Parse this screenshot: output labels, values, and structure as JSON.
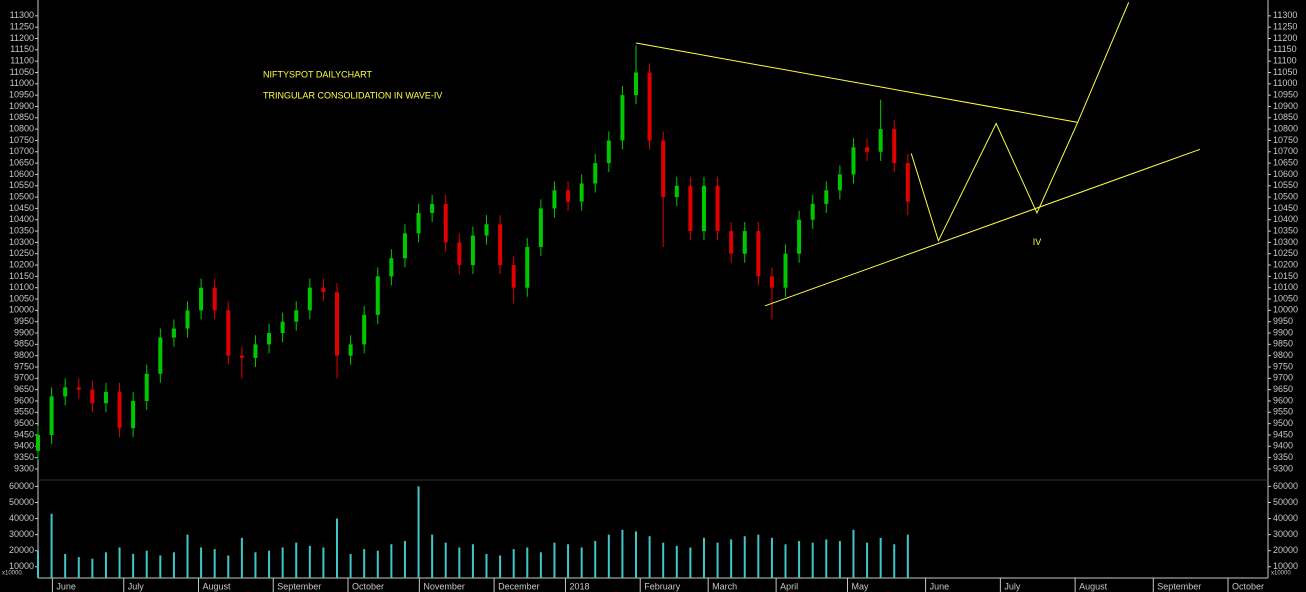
{
  "chart_data": {
    "type": "candlestick",
    "title": "NIFTYSPOT DAILYCHART",
    "subtitle": "TRINGULAR CONSOLIDATION IN WAVE-IV",
    "volume_unit_label": "x10000",
    "up_color": "#00c800",
    "down_color": "#e00000",
    "volume_color": "#40c8c8",
    "line_color": "#ffff40",
    "xlim": [
      0,
      362
    ],
    "ylim": [
      9260,
      11370
    ],
    "vlim": [
      3000,
      64000
    ],
    "xticks": [
      {
        "value": 6,
        "label": "June"
      },
      {
        "value": 27,
        "label": "July"
      },
      {
        "value": 49,
        "label": "August"
      },
      {
        "value": 71,
        "label": "September"
      },
      {
        "value": 93,
        "label": "October"
      },
      {
        "value": 114,
        "label": "November"
      },
      {
        "value": 136,
        "label": "December"
      },
      {
        "value": 157,
        "label": "2018"
      },
      {
        "value": 179,
        "label": "February"
      },
      {
        "value": 199,
        "label": "March"
      },
      {
        "value": 219,
        "label": "April"
      },
      {
        "value": 240,
        "label": "May"
      },
      {
        "value": 263,
        "label": "June"
      },
      {
        "value": 285,
        "label": "July"
      },
      {
        "value": 307,
        "label": "August"
      },
      {
        "value": 330,
        "label": "September"
      },
      {
        "value": 352,
        "label": "October"
      }
    ],
    "yticks": [
      9300,
      9350,
      9400,
      9450,
      9500,
      9550,
      9600,
      9650,
      9700,
      9750,
      9800,
      9850,
      9900,
      9950,
      10000,
      10050,
      10100,
      10150,
      10200,
      10250,
      10300,
      10350,
      10400,
      10450,
      10500,
      10550,
      10600,
      10650,
      10700,
      10750,
      10800,
      10850,
      10900,
      10950,
      11000,
      11050,
      11100,
      11150,
      11200,
      11250,
      11300
    ],
    "vticks": [
      10000,
      20000,
      30000,
      40000,
      50000,
      60000
    ],
    "x": [
      0,
      4,
      8,
      12,
      16,
      20,
      24,
      28,
      32,
      36,
      40,
      44,
      48,
      52,
      56,
      60,
      64,
      68,
      72,
      76,
      80,
      84,
      88,
      92,
      96,
      100,
      104,
      108,
      112,
      116,
      120,
      124,
      128,
      132,
      136,
      140,
      144,
      148,
      152,
      156,
      160,
      164,
      168,
      172,
      176,
      180,
      184,
      188,
      192,
      196,
      200,
      204,
      208,
      212,
      216,
      220,
      224,
      228,
      232,
      236,
      240,
      244,
      248,
      252,
      256
    ],
    "open": [
      9380,
      9450,
      9620,
      9660,
      9650,
      9590,
      9640,
      9480,
      9600,
      9720,
      9880,
      9920,
      10000,
      10100,
      10000,
      9800,
      9790,
      9850,
      9900,
      9950,
      10000,
      10100,
      10080,
      9800,
      9850,
      9980,
      10150,
      10230,
      10340,
      10430,
      10470,
      10300,
      10200,
      10330,
      10380,
      10200,
      10100,
      10280,
      10450,
      10530,
      10480,
      10560,
      10650,
      10750,
      10950,
      11050,
      10750,
      10500,
      10550,
      10350,
      10550,
      10350,
      10250,
      10350,
      10150,
      10100,
      10250,
      10400,
      10470,
      10530,
      10600,
      10720,
      10700,
      10800,
      10650
    ],
    "high": [
      9490,
      9660,
      9700,
      9700,
      9690,
      9680,
      9680,
      9640,
      9760,
      9920,
      9960,
      10040,
      10140,
      10140,
      10040,
      9840,
      9890,
      9940,
      9990,
      10040,
      10140,
      10140,
      10120,
      9890,
      10020,
      10190,
      10270,
      10380,
      10470,
      10510,
      10510,
      10340,
      10370,
      10420,
      10420,
      10240,
      10320,
      10490,
      10570,
      10570,
      10600,
      10690,
      10790,
      10990,
      11170,
      11090,
      10790,
      10590,
      10590,
      10590,
      10590,
      10390,
      10390,
      10390,
      10190,
      10290,
      10440,
      10510,
      10570,
      10640,
      10760,
      10760,
      10930,
      10840,
      10690
    ],
    "low": [
      9340,
      9410,
      9580,
      9610,
      9550,
      9550,
      9440,
      9440,
      9560,
      9680,
      9840,
      9880,
      9960,
      9960,
      9760,
      9700,
      9750,
      9810,
      9860,
      9910,
      9960,
      10040,
      9700,
      9760,
      9810,
      9940,
      10110,
      10190,
      10300,
      10390,
      10260,
      10160,
      10160,
      10290,
      10160,
      10030,
      10060,
      10240,
      10410,
      10440,
      10440,
      10520,
      10610,
      10710,
      10910,
      10710,
      10280,
      10460,
      10310,
      10310,
      10310,
      10210,
      10210,
      10110,
      9960,
      10060,
      10210,
      10360,
      10430,
      10490,
      10560,
      10660,
      10660,
      10610,
      10420
    ],
    "close": [
      9450,
      9620,
      9660,
      9650,
      9590,
      9640,
      9480,
      9600,
      9720,
      9880,
      9920,
      10000,
      10100,
      10000,
      9800,
      9790,
      9850,
      9900,
      9950,
      10000,
      10100,
      10080,
      9800,
      9850,
      9980,
      10150,
      10230,
      10340,
      10430,
      10470,
      10300,
      10200,
      10330,
      10380,
      10200,
      10100,
      10280,
      10450,
      10530,
      10480,
      10560,
      10650,
      10750,
      10950,
      11050,
      10750,
      10500,
      10550,
      10350,
      10550,
      10350,
      10250,
      10350,
      10150,
      10100,
      10250,
      10400,
      10470,
      10530,
      10600,
      10720,
      10700,
      10800,
      10650,
      10480
    ],
    "volume": [
      20000,
      43000,
      18000,
      16000,
      15000,
      19000,
      22000,
      18000,
      20000,
      17000,
      19000,
      30000,
      22000,
      21000,
      17000,
      28000,
      19000,
      20000,
      22000,
      25000,
      23000,
      22000,
      40000,
      18000,
      21000,
      20000,
      24000,
      26000,
      60000,
      30000,
      25000,
      22000,
      24000,
      18000,
      17000,
      21000,
      22000,
      19000,
      25000,
      24000,
      22000,
      26000,
      30000,
      33000,
      32000,
      29000,
      25000,
      23000,
      22000,
      28000,
      25000,
      27000,
      29000,
      30000,
      28000,
      24000,
      26000,
      25000,
      27000,
      26000,
      33000,
      25000,
      28000,
      24000,
      30000
    ],
    "lines": [
      {
        "x": [
          176,
          306
        ],
        "y": [
          11180,
          10830
        ]
      },
      {
        "x": [
          214,
          342
        ],
        "y": [
          10020,
          10711
        ]
      },
      {
        "x": [
          257,
          265,
          282,
          294,
          306,
          321
        ],
        "y": [
          10693,
          10307,
          10825,
          10430,
          10830,
          11360
        ]
      }
    ],
    "annotations": [
      {
        "text": "IV",
        "x": 294,
        "y": 10300
      }
    ]
  }
}
